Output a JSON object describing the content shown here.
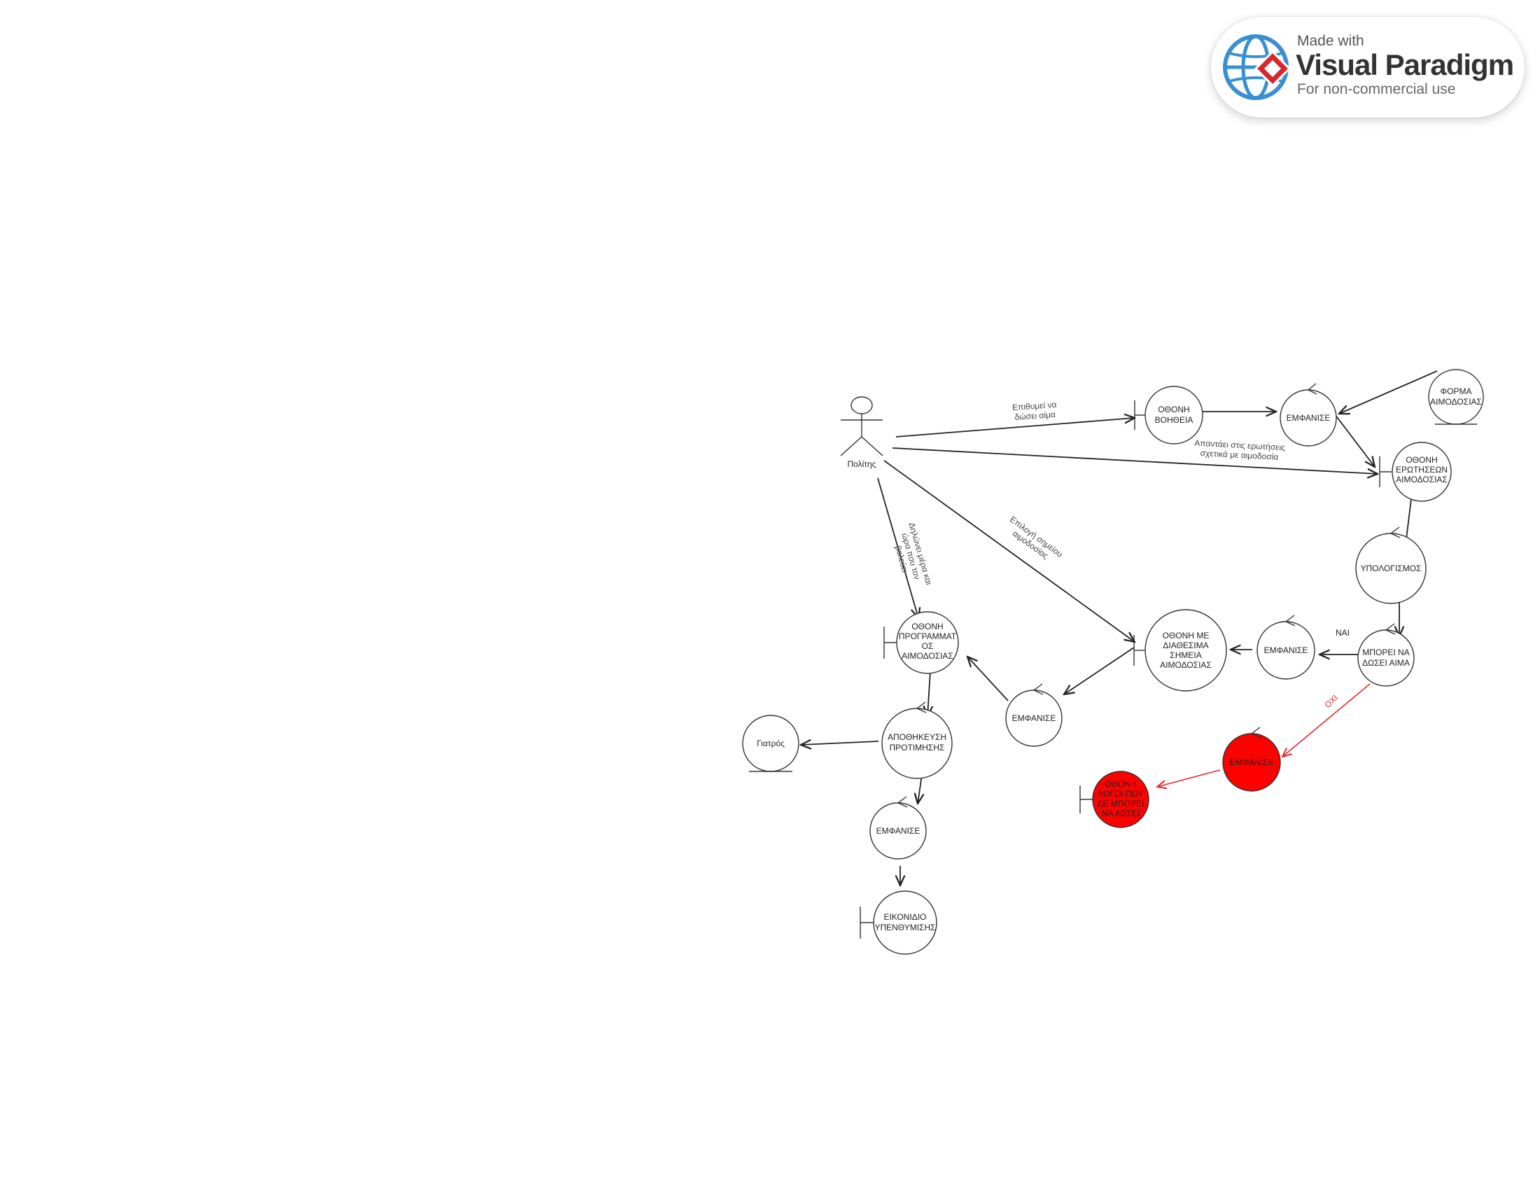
{
  "watermark": {
    "made_with": "Made with",
    "brand": "Visual Paradigm",
    "note": "For non-commercial use"
  },
  "actors": {
    "citizen": "Πολίτης"
  },
  "nodes": {
    "help_screen": [
      "ΟΘΟΝΗ",
      "ΒΟΗΘΕΙΑ"
    ],
    "show_1": [
      "ΕΜΦΑΝΙΣΕ"
    ],
    "blood_form": [
      "ΦΟΡΜΑ",
      "ΑΙΜΟΔΟΣΙΑΣ"
    ],
    "questions_screen": [
      "ΟΘΟΝΗ",
      "ΕΡΩΤΗΣΕΩΝ",
      "ΑΙΜΟΔΟΣΙΑΣ"
    ],
    "calculation": [
      "ΥΠΟΛΟΓΙΣΜΟΣ"
    ],
    "can_donate": [
      "ΜΠΟΡΕΙ ΝΑ",
      "ΔΩΣΕΙ ΑΙΜΑ"
    ],
    "show_2": [
      "ΕΜΦΑΝΙΣΕ"
    ],
    "points_screen": [
      "ΟΘΟΝΗ ΜΕ",
      "ΔΙΑΘΕΣΙΜΑ",
      "ΣΗΜΕΙΑ",
      "ΑΙΜΟΔΟΣΙΑΣ"
    ],
    "show_3": [
      "ΕΜΦΑΝΙΣΕ"
    ],
    "schedule_screen": [
      "ΟΘΟΝΗ",
      "ΠΡΟΓΡΑΜΜΑΤ",
      "ΟΣ",
      "ΑΙΜΟΔΟΣΙΑΣ"
    ],
    "save_preference": [
      "ΑΠΟΘΗΚΕΥΣΗ",
      "ΠΡΟΤΙΜΗΣΗΣ"
    ],
    "doctor": [
      "Γιατρός"
    ],
    "show_4": [
      "ΕΜΦΑΝΙΣΕ"
    ],
    "reminder_icon": [
      "ΕΙΚΟΝΙΔΙΟ",
      "ΥΠΕΝΘΥΜΙΣΗΣ"
    ],
    "show_red": [
      "ΕΜΦΑΝΙΣΕ"
    ],
    "reasons_screen": [
      "ΟΘΟΝΗ",
      "ΛΟΓΟΙ ΠΟΥ",
      "ΔΕ ΜΠΟΡΕΙ",
      "ΝΑ ΔΩΣΕΙ"
    ]
  },
  "edge_labels": {
    "wants_to_donate": [
      "Επιθυμεί να",
      "δώσει αίμα"
    ],
    "answers_questions": [
      "Απαντάει στις ερωτήσεις",
      "σχετικά με αιμοδοσία"
    ],
    "choose_point": [
      "Επιλογή σημείου",
      "αιμοδοσίας"
    ],
    "declares_time": [
      "Δηλώνει μέρα και",
      "ώρα που τον",
      "βολεύει"
    ],
    "yes": "ΝΑΙ",
    "no": "ΟΧΙ"
  },
  "colors": {
    "stroke": "#333333",
    "fill": "#ffffff",
    "negative_fill": "#ff0000",
    "negative_edge": "#e8262b"
  }
}
